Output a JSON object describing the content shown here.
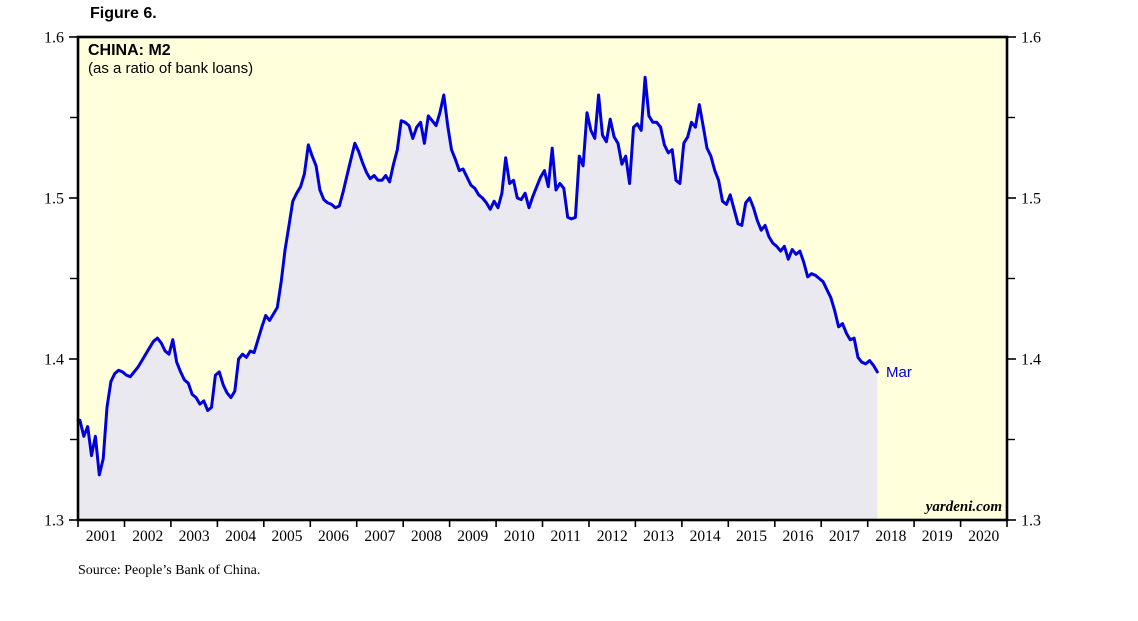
{
  "figure_label": "Figure 6.",
  "source_note": "Source: People’s Bank of China.",
  "watermark": "yardeni.com",
  "chart_data": {
    "type": "line",
    "title": "CHINA: M2",
    "subtitle": "(as a ratio of bank loans)",
    "end_label": "Mar",
    "ylim": [
      1.3,
      1.6
    ],
    "y_ticks": [
      "1.3",
      "1.4",
      "1.5",
      "1.6"
    ],
    "y_minor_ticks": [
      1.35,
      1.45,
      1.55
    ],
    "x_labels": [
      "2001",
      "2002",
      "2003",
      "2004",
      "2005",
      "2006",
      "2007",
      "2008",
      "2009",
      "2010",
      "2011",
      "2012",
      "2013",
      "2014",
      "2015",
      "2016",
      "2017",
      "2018",
      "2019",
      "2020"
    ],
    "grid": false,
    "legend": "none",
    "axis_label_position": "both-sides",
    "colors": {
      "line": "#0000dd",
      "area_fill": "#e9e9ef",
      "plot_background": "#ffffdc",
      "axis": "#000000",
      "end_label_text": "#0000dd"
    },
    "series": [
      {
        "name": "M2 as a ratio of bank loans",
        "frequency": "monthly",
        "start": "2001-01",
        "end": "2018-03",
        "values": [
          1.362,
          1.352,
          1.358,
          1.34,
          1.352,
          1.328,
          1.338,
          1.37,
          1.386,
          1.391,
          1.393,
          1.392,
          1.39,
          1.389,
          1.392,
          1.395,
          1.399,
          1.403,
          1.407,
          1.411,
          1.413,
          1.41,
          1.405,
          1.403,
          1.412,
          1.398,
          1.392,
          1.387,
          1.385,
          1.378,
          1.376,
          1.372,
          1.374,
          1.368,
          1.37,
          1.39,
          1.392,
          1.384,
          1.379,
          1.376,
          1.38,
          1.4,
          1.403,
          1.401,
          1.405,
          1.404,
          1.412,
          1.42,
          1.427,
          1.424,
          1.428,
          1.432,
          1.448,
          1.468,
          1.483,
          1.498,
          1.503,
          1.507,
          1.515,
          1.533,
          1.526,
          1.52,
          1.505,
          1.499,
          1.497,
          1.496,
          1.494,
          1.495,
          1.504,
          1.514,
          1.524,
          1.534,
          1.529,
          1.522,
          1.516,
          1.512,
          1.514,
          1.511,
          1.511,
          1.514,
          1.51,
          1.521,
          1.53,
          1.548,
          1.547,
          1.545,
          1.537,
          1.544,
          1.547,
          1.534,
          1.551,
          1.548,
          1.545,
          1.553,
          1.564,
          1.545,
          1.53,
          1.524,
          1.517,
          1.518,
          1.513,
          1.508,
          1.506,
          1.502,
          1.5,
          1.497,
          1.493,
          1.498,
          1.494,
          1.503,
          1.525,
          1.509,
          1.511,
          1.5,
          1.499,
          1.503,
          1.494,
          1.501,
          1.507,
          1.513,
          1.517,
          1.507,
          1.531,
          1.505,
          1.509,
          1.506,
          1.488,
          1.487,
          1.488,
          1.526,
          1.52,
          1.553,
          1.542,
          1.537,
          1.564,
          1.539,
          1.535,
          1.549,
          1.538,
          1.534,
          1.521,
          1.526,
          1.509,
          1.544,
          1.546,
          1.542,
          1.575,
          1.551,
          1.547,
          1.547,
          1.544,
          1.533,
          1.528,
          1.53,
          1.511,
          1.509,
          1.534,
          1.538,
          1.547,
          1.544,
          1.558,
          1.545,
          1.531,
          1.526,
          1.517,
          1.511,
          1.498,
          1.496,
          1.502,
          1.493,
          1.484,
          1.483,
          1.497,
          1.5,
          1.494,
          1.486,
          1.48,
          1.483,
          1.476,
          1.472,
          1.47,
          1.467,
          1.47,
          1.462,
          1.468,
          1.465,
          1.467,
          1.46,
          1.451,
          1.453,
          1.452,
          1.45,
          1.448,
          1.443,
          1.438,
          1.43,
          1.42,
          1.422,
          1.416,
          1.412,
          1.413,
          1.401,
          1.398,
          1.397,
          1.399,
          1.396,
          1.392
        ]
      }
    ]
  }
}
